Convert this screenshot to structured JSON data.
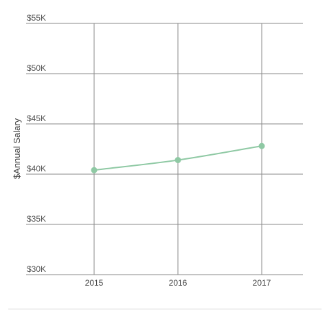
{
  "chart_data": {
    "type": "line",
    "title": "",
    "xlabel": "",
    "ylabel": "$Annual Salary",
    "categories": [
      "2015",
      "2016",
      "2017"
    ],
    "series": [
      {
        "values": [
          40400,
          41400,
          42800
        ]
      }
    ],
    "ylim": [
      30000,
      55000
    ],
    "y_ticks": [
      55000,
      50000,
      45000,
      40000,
      35000,
      30000
    ],
    "y_tick_labels": [
      "$55K",
      "$50K",
      "$45K",
      "$40K",
      "$35K",
      "$30K"
    ],
    "grid": true,
    "legend": "none",
    "series_color": "#8fc9a4"
  }
}
